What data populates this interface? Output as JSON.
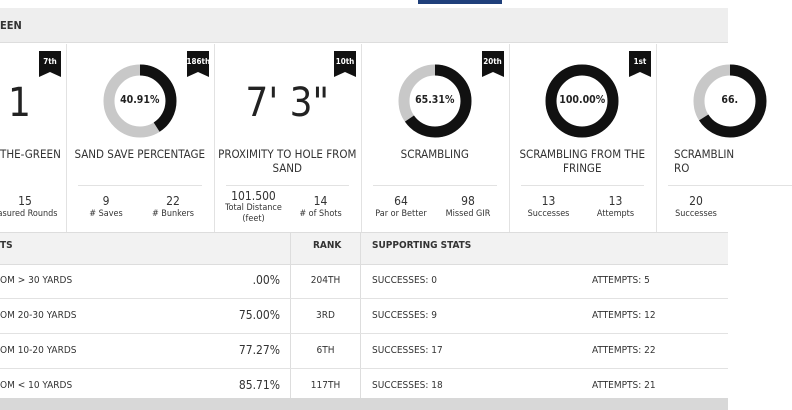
{
  "header": {
    "title": "EEN"
  },
  "cards": [
    {
      "rank": "7th",
      "big": "1",
      "label": [
        "THE-GREEN"
      ],
      "stats": [
        {
          "value": "15",
          "label": "easured Rounds"
        }
      ]
    },
    {
      "rank": "186th",
      "donut": {
        "value": 40.91,
        "value_label": "40.91%"
      },
      "label": [
        "SAND SAVE PERCENTAGE"
      ],
      "stats": [
        {
          "value": "9",
          "label": "# Saves"
        },
        {
          "value": "22",
          "label": "# Bunkers"
        }
      ]
    },
    {
      "rank": "10th",
      "big": "7' 3\"",
      "label": [
        "PROXIMITY TO HOLE FROM",
        "SAND"
      ],
      "stats": [
        {
          "value": "101.500",
          "label": "Total Distance (feet)"
        },
        {
          "value": "14",
          "label": "# of Shots"
        }
      ]
    },
    {
      "rank": "20th",
      "donut": {
        "value": 65.31,
        "value_label": "65.31%"
      },
      "label": [
        "SCRAMBLING"
      ],
      "stats": [
        {
          "value": "64",
          "label": "Par or Better"
        },
        {
          "value": "98",
          "label": "Missed GIR"
        }
      ]
    },
    {
      "rank": "1st",
      "donut": {
        "value": 100,
        "value_label": "100.00%"
      },
      "label": [
        "SCRAMBLING FROM THE",
        "FRINGE"
      ],
      "stats": [
        {
          "value": "13",
          "label": "Successes"
        },
        {
          "value": "13",
          "label": "Attempts"
        }
      ]
    },
    {
      "donut": {
        "value": 66,
        "value_label": "66."
      },
      "label": [
        "SCRAMBLIN",
        "RO"
      ],
      "stats": [
        {
          "value": "20",
          "label": "Successes"
        }
      ]
    }
  ],
  "table": {
    "columns": [
      "TS",
      "RANK",
      "SUPPORTING STATS"
    ],
    "rows": [
      [
        "OM > 30 YARDS",
        ".00%",
        "204TH",
        "SUCCESSES: 0",
        "ATTEMPTS: 5"
      ],
      [
        "OM 20-30 YARDS",
        "75.00%",
        "3RD",
        "SUCCESSES: 9",
        "ATTEMPTS: 12"
      ],
      [
        "OM 10-20 YARDS",
        "77.27%",
        "6TH",
        "SUCCESSES: 17",
        "ATTEMPTS: 22"
      ],
      [
        "OM < 10 YARDS",
        "85.71%",
        "117TH",
        "SUCCESSES: 18",
        "ATTEMPTS: 21"
      ]
    ]
  }
}
